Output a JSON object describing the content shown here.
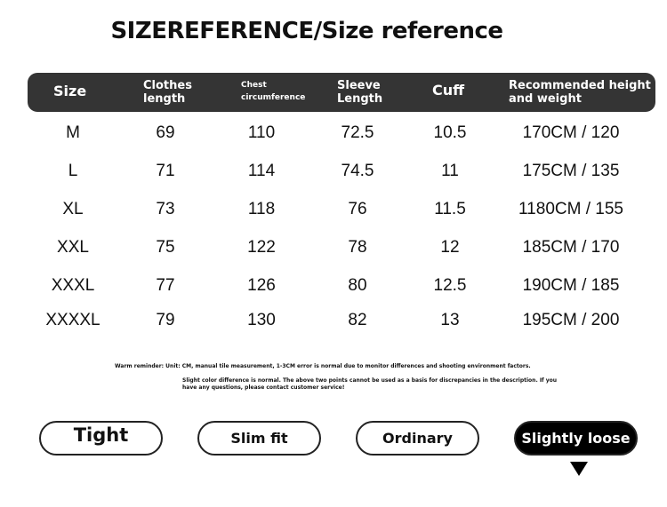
{
  "title": "SIZEREFERENCE/Size reference",
  "headers": [
    "Size",
    "Clothes length",
    "Chest circumference",
    "Sleeve Length",
    "Cuff",
    "Recommended height and weight"
  ],
  "rows": [
    [
      "M",
      "69",
      "110",
      "72.5",
      "10.5",
      "170CM / 120"
    ],
    [
      "L",
      "71",
      "114",
      "74.5",
      "11",
      "175CM / 135"
    ],
    [
      "XL",
      "73",
      "118",
      "76",
      "11.5",
      "1180CM / 155"
    ],
    [
      "XXL",
      "75",
      "122",
      "78",
      "12",
      "185CM / 170"
    ],
    [
      "XXXL",
      "77",
      "126",
      "80",
      "12.5",
      "190CM / 185"
    ],
    [
      "XXXXL",
      "79",
      "130",
      "82",
      "13",
      "195CM / 200"
    ]
  ],
  "notes": [
    "Warm reminder: Unit: CM, manual tile measurement, 1-3CM error is normal due to monitor differences and shooting environment factors.",
    "Slight color difference is normal. The above two points cannot be used as a basis for discrepancies in the description. If you have any questions, please contact customer service!"
  ],
  "fit_options": [
    {
      "label": "Tight"
    },
    {
      "label": "Slim fit"
    },
    {
      "label": "Ordinary"
    },
    {
      "label": "Slightly loose",
      "selected": true
    }
  ],
  "colors": {
    "header_bg": "#343434",
    "selected_bg": "#000000"
  },
  "icons": {
    "selected_marker": "triangle-down-icon"
  }
}
